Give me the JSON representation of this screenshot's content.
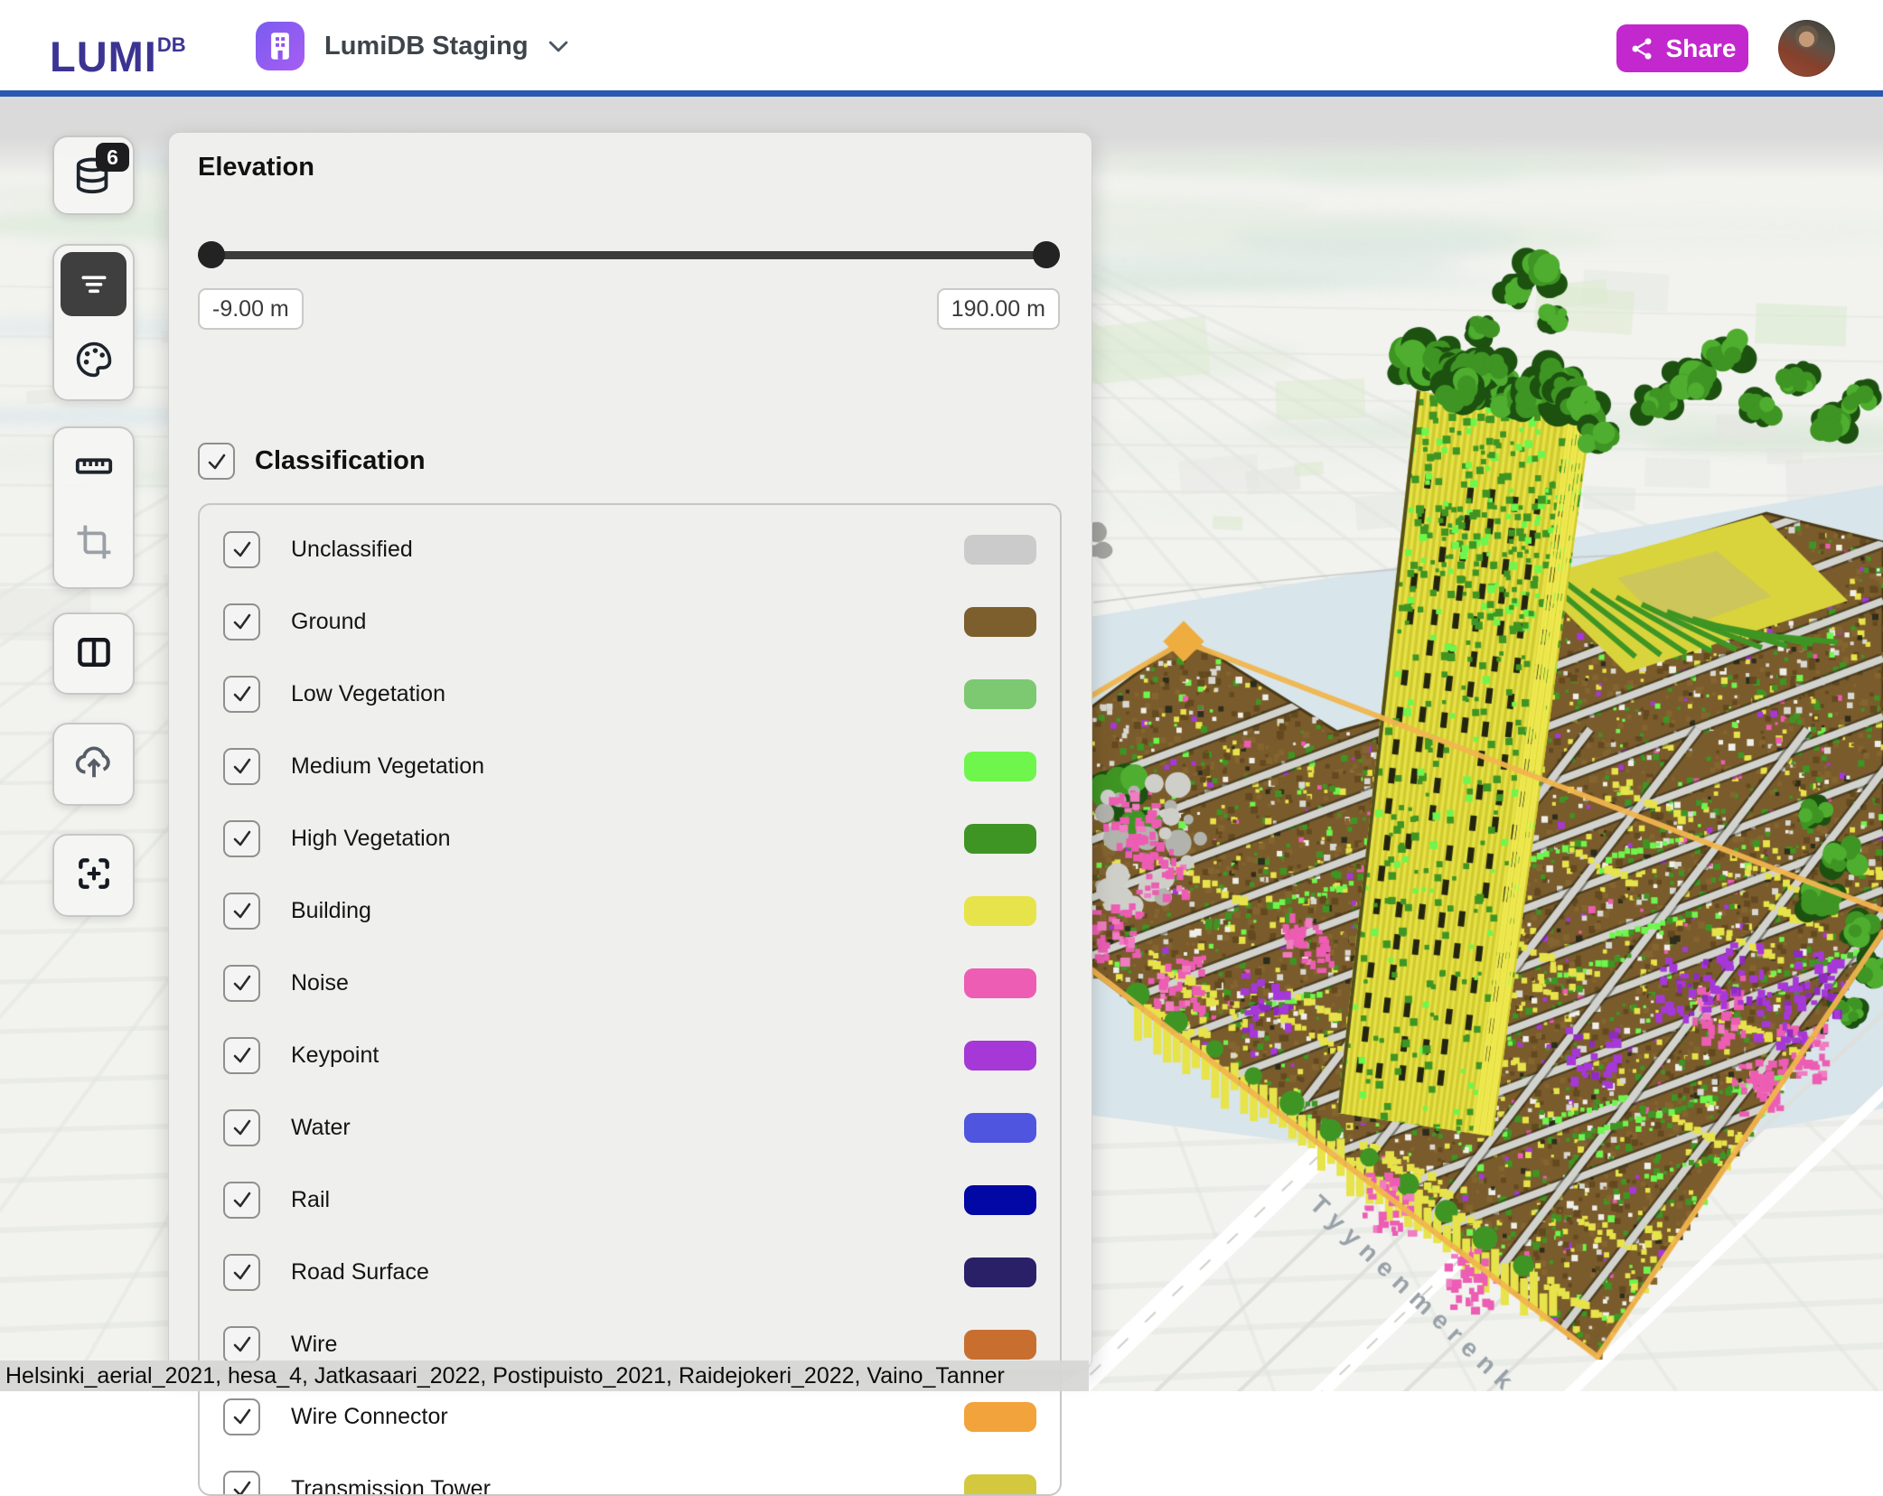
{
  "header": {
    "brand": "LUMI",
    "brand_sup": "DB",
    "project_name": "LumiDB Staging",
    "share_label": "Share"
  },
  "sidebar": {
    "dataset_badge_count": "6",
    "icons": [
      "database-icon",
      "filter-icon",
      "palette-icon",
      "ruler-icon",
      "crop-icon",
      "split-view-icon",
      "cloud-upload-icon",
      "focus-center-icon"
    ]
  },
  "panel": {
    "elevation": {
      "title": "Elevation",
      "min_value": "-9.00 m",
      "max_value": "190.00 m"
    },
    "classification": {
      "title": "Classification",
      "checked": true,
      "classes": [
        {
          "label": "Unclassified",
          "color": "#cbcbcb",
          "checked": true
        },
        {
          "label": "Ground",
          "color": "#7d5e2d",
          "checked": true
        },
        {
          "label": "Low Vegetation",
          "color": "#7cc971",
          "checked": true
        },
        {
          "label": "Medium Vegetation",
          "color": "#6ef64d",
          "checked": true
        },
        {
          "label": "High Vegetation",
          "color": "#3f9523",
          "checked": true
        },
        {
          "label": "Building",
          "color": "#e7e34a",
          "checked": true
        },
        {
          "label": "Noise",
          "color": "#ec5db3",
          "checked": true
        },
        {
          "label": "Keypoint",
          "color": "#a638d7",
          "checked": true
        },
        {
          "label": "Water",
          "color": "#4f55de",
          "checked": true
        },
        {
          "label": "Rail",
          "color": "#0108a4",
          "checked": true
        },
        {
          "label": "Road Surface",
          "color": "#2a2068",
          "checked": true
        },
        {
          "label": "Wire",
          "color": "#c86f30",
          "checked": true
        },
        {
          "label": "Wire Connector",
          "color": "#f2a33b",
          "checked": true
        },
        {
          "label": "Transmission Tower",
          "color": "#d4c83e",
          "checked": true
        }
      ]
    }
  },
  "map": {
    "street_label": "Tyynenmerenk",
    "status_bar_text": "Helsinki_aerial_2021, hesa_4, Jatkasaari_2022, Postipuisto_2021, Raidejokeri_2022, Vaino_Tanner",
    "colors": {
      "water": "#d8e5ea",
      "land": "#f2f3ef",
      "top_band": "#d9dad9",
      "grid_line": "#e2e3de",
      "park": "#dcead0",
      "ground_base": "#7a5b2b",
      "ground_dark": "#63491f",
      "wire_gray": "#d2d3ce",
      "boundary_orange": "#f1b54e",
      "street_label_color": "#98a1a8"
    }
  },
  "colors": {
    "brand": "#3b3492",
    "header_divider": "#2b58b0",
    "share_accent": "#c228ce",
    "project_icon_from": "#7a5cf0",
    "project_icon_to": "#a75df2",
    "selected_tool_bg": "#3f3f3f"
  }
}
